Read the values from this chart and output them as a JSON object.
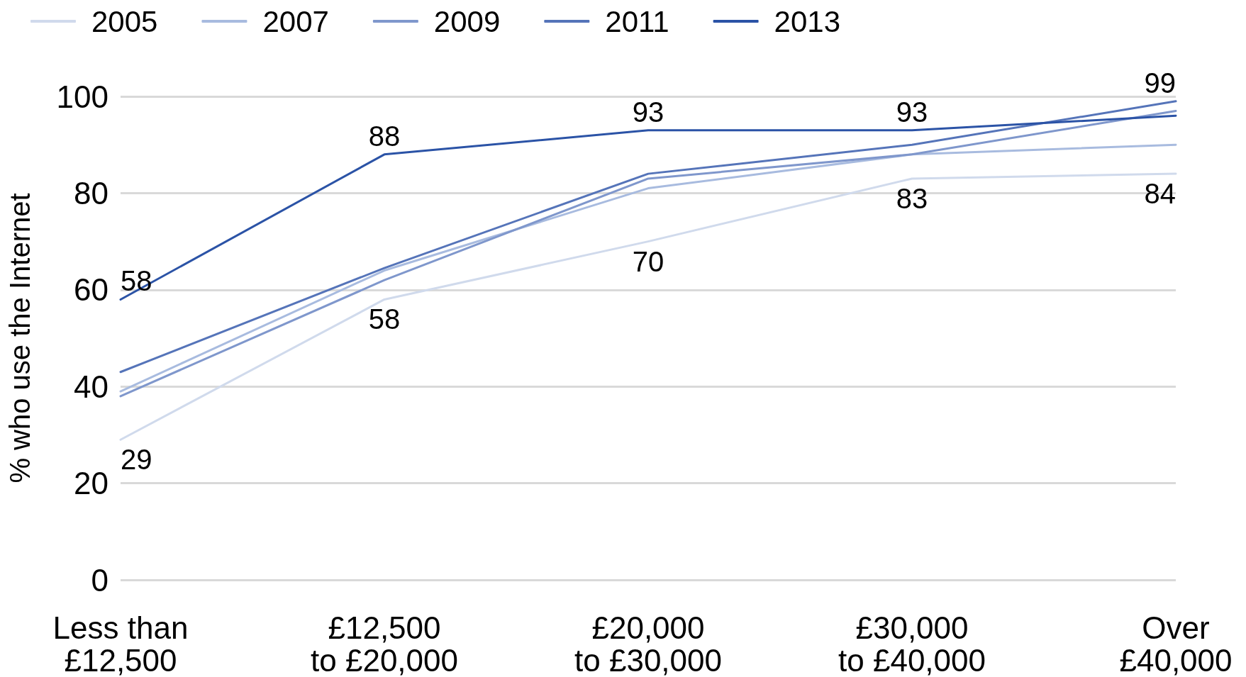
{
  "chart_data": {
    "type": "line",
    "ylabel": "% who use the Internet",
    "categories": [
      "Less than £12,500",
      "£12,500 to £20,000",
      "£20,000 to £30,000",
      "£30,000 to £40,000",
      "Over £40,000"
    ],
    "series": [
      {
        "name": "2005",
        "color": "#d0daec",
        "values": [
          29,
          58,
          70,
          83,
          84
        ],
        "value_labels": [
          "29",
          "58",
          "70",
          "83",
          "84"
        ]
      },
      {
        "name": "2007",
        "color": "#a8bbdf",
        "values": [
          39,
          64,
          81,
          88,
          90
        ]
      },
      {
        "name": "2009",
        "color": "#7f97cc",
        "values": [
          38,
          62,
          83,
          88,
          97
        ]
      },
      {
        "name": "2011",
        "color": "#5574b9",
        "values": [
          43,
          64.5,
          84,
          90,
          99
        ],
        "value_labels": [
          null,
          null,
          null,
          null,
          "99"
        ]
      },
      {
        "name": "2013",
        "color": "#2b53a6",
        "values": [
          58,
          88,
          93,
          93,
          96
        ],
        "value_labels": [
          "58",
          "88",
          "93",
          "93",
          null
        ]
      }
    ],
    "ylim": [
      0,
      100
    ],
    "yticks": [
      0,
      20,
      40,
      60,
      80,
      100
    ],
    "grid": "y",
    "legend": "top left"
  }
}
